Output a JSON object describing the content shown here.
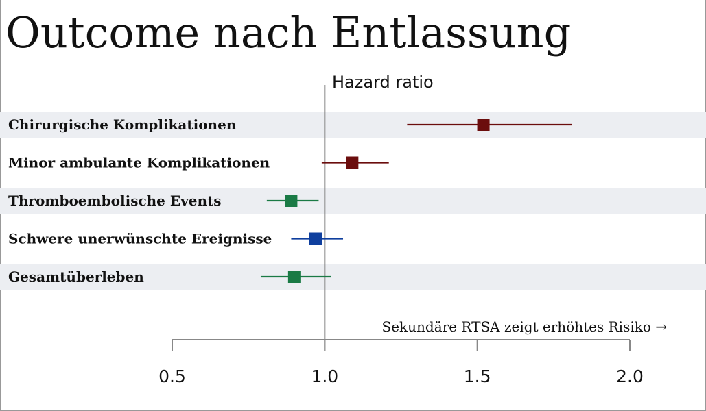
{
  "chart_data": {
    "type": "forest",
    "title": "Outcome nach Entlassung",
    "axis_title": "Hazard ratio",
    "annotation": "Sekundäre RTSA zeigt erhöhtes Risiko →",
    "reference_line": 1.0,
    "xlim": [
      0.5,
      2.0
    ],
    "x_ticks": [
      0.5,
      1.0,
      1.5,
      2.0
    ],
    "x_tick_labels": [
      "0.5",
      "1.0",
      "1.5",
      "2.0"
    ],
    "band_color": "#eceef2",
    "rows": [
      {
        "label": "Chirurgische Komplikationen",
        "hr": 1.52,
        "lower": 1.27,
        "upper": 1.81,
        "color": "#6b0d0d",
        "shaded": true
      },
      {
        "label": "Minor ambulante Komplikationen",
        "hr": 1.09,
        "lower": 0.99,
        "upper": 1.21,
        "color": "#6b0d0d",
        "shaded": false
      },
      {
        "label": "Thromboembolische Events",
        "hr": 0.89,
        "lower": 0.81,
        "upper": 0.98,
        "color": "#1a7a45",
        "shaded": true
      },
      {
        "label": "Schwere unerwünschte Ereignisse",
        "hr": 0.97,
        "lower": 0.89,
        "upper": 1.06,
        "color": "#0f3f9e",
        "shaded": false
      },
      {
        "label": "Gesamtüberleben",
        "hr": 0.9,
        "lower": 0.79,
        "upper": 1.02,
        "color": "#1a7a45",
        "shaded": true
      }
    ]
  }
}
